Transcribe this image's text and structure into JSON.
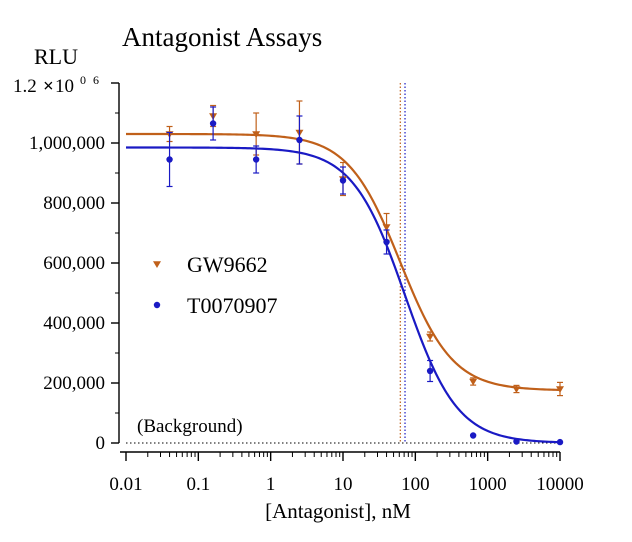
{
  "chart_data": {
    "type": "scatter",
    "title": "Antagonist Assays",
    "xlabel": "[Antagonist], nM",
    "ylabel": "RLU",
    "x_scale": "log",
    "xlim": [
      0.01,
      10000
    ],
    "ylim": [
      0,
      1200000
    ],
    "x_ticks": [
      0.01,
      0.1,
      1,
      10,
      100,
      1000,
      10000
    ],
    "x_tick_labels": [
      "0.01",
      "0.1",
      "1",
      "10",
      "100",
      "1000",
      "10000"
    ],
    "y_ticks": [
      0,
      200000,
      400000,
      600000,
      800000,
      1000000
    ],
    "y_tick_labels": [
      "0",
      "200,000",
      "400,000",
      "600,000",
      "800,000",
      "1,000,000"
    ],
    "y_top_label": {
      "mantissa": "1.2",
      "times": "×",
      "base": "10",
      "exponent": "0 6"
    },
    "grid": false,
    "legend_position": "middle-left",
    "annotations": [
      {
        "text": "(Background)",
        "y": 0
      }
    ],
    "series": [
      {
        "name": "GW9662",
        "color": "#c0601a",
        "marker": "triangle-down",
        "x": [
          0.04,
          0.16,
          0.63,
          2.5,
          10,
          40,
          160,
          630,
          2500,
          10000
        ],
        "y": [
          1030000,
          1090000,
          1030000,
          1035000,
          880000,
          720000,
          355000,
          205000,
          180000,
          180000
        ],
        "err": [
          25000,
          35000,
          70000,
          105000,
          55000,
          45000,
          15000,
          12000,
          12000,
          22000
        ],
        "ic50": 62,
        "fit": {
          "top": 1030000,
          "bottom": 175000,
          "hill": 1.2
        }
      },
      {
        "name": "T0070907",
        "color": "#1a1ac4",
        "marker": "circle",
        "x": [
          0.04,
          0.16,
          0.63,
          2.5,
          10,
          40,
          160,
          630,
          2500,
          10000
        ],
        "y": [
          945000,
          1065000,
          945000,
          1010000,
          875000,
          670000,
          240000,
          25000,
          5000,
          3000
        ],
        "err": [
          90000,
          55000,
          45000,
          80000,
          45000,
          40000,
          35000,
          0,
          0,
          0
        ],
        "ic50": 72,
        "fit": {
          "top": 985000,
          "bottom": 0,
          "hill": 1.2
        }
      }
    ]
  }
}
